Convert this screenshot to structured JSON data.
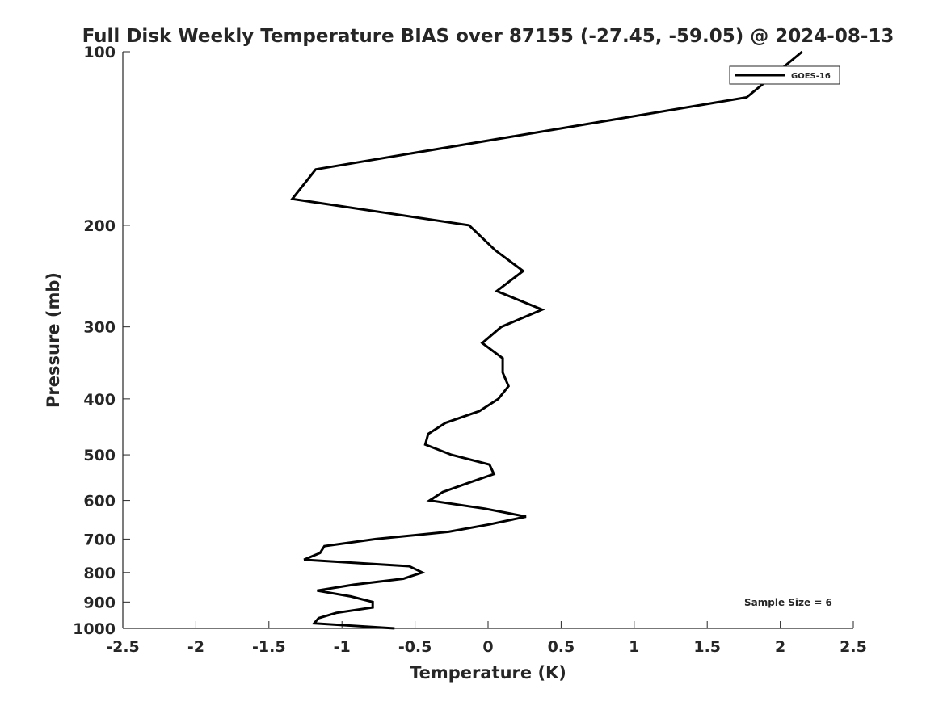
{
  "chart_data": {
    "type": "line",
    "title": "Full Disk Weekly Temperature BIAS over 87155 (-27.45, -59.05) @ 2024-08-13",
    "xlabel": "Temperature (K)",
    "ylabel": "Pressure (mb)",
    "xlim": [
      -2.5,
      2.5
    ],
    "ylim": [
      100,
      1000
    ],
    "yscale": "log",
    "yreversed": true,
    "xticks": [
      -2.5,
      -2,
      -1.5,
      -1,
      -0.5,
      0,
      0.5,
      1,
      1.5,
      2,
      2.5
    ],
    "xtick_labels": [
      "-2.5",
      "-2",
      "-1.5",
      "-1",
      "-0.5",
      "0",
      "0.5",
      "1",
      "1.5",
      "2",
      "2.5"
    ],
    "yticks": [
      100,
      200,
      300,
      400,
      500,
      600,
      700,
      800,
      900,
      1000
    ],
    "ytick_labels": [
      "100",
      "200",
      "300",
      "400",
      "500",
      "600",
      "700",
      "800",
      "900",
      "1000"
    ],
    "grid": false,
    "legend": {
      "position": "top-right",
      "entries": [
        "GOES-16"
      ]
    },
    "annotation": "Sample Size = 6",
    "series": [
      {
        "name": "GOES-16",
        "color": "#000000",
        "pressure": [
          100,
          120,
          160,
          180,
          200,
          221,
          240,
          260,
          280,
          300,
          320,
          340,
          360,
          380,
          400,
          420,
          440,
          460,
          480,
          500,
          520,
          540,
          560,
          580,
          600,
          620,
          640,
          660,
          680,
          700,
          720,
          740,
          760,
          780,
          800,
          820,
          840,
          860,
          880,
          900,
          920,
          940,
          960,
          980,
          1000
        ],
        "temperature": [
          2.15,
          1.77,
          -1.18,
          -1.34,
          -0.13,
          0.05,
          0.24,
          0.06,
          0.37,
          0.09,
          -0.04,
          0.1,
          0.1,
          0.14,
          0.07,
          -0.06,
          -0.29,
          -0.41,
          -0.43,
          -0.25,
          0.01,
          0.04,
          -0.14,
          -0.31,
          -0.4,
          -0.02,
          0.26,
          0.01,
          -0.27,
          -0.77,
          -1.12,
          -1.15,
          -1.26,
          -0.54,
          -0.45,
          -0.58,
          -0.92,
          -1.17,
          -0.94,
          -0.79,
          -0.79,
          -1.04,
          -1.16,
          -1.19,
          -0.64
        ]
      }
    ]
  }
}
